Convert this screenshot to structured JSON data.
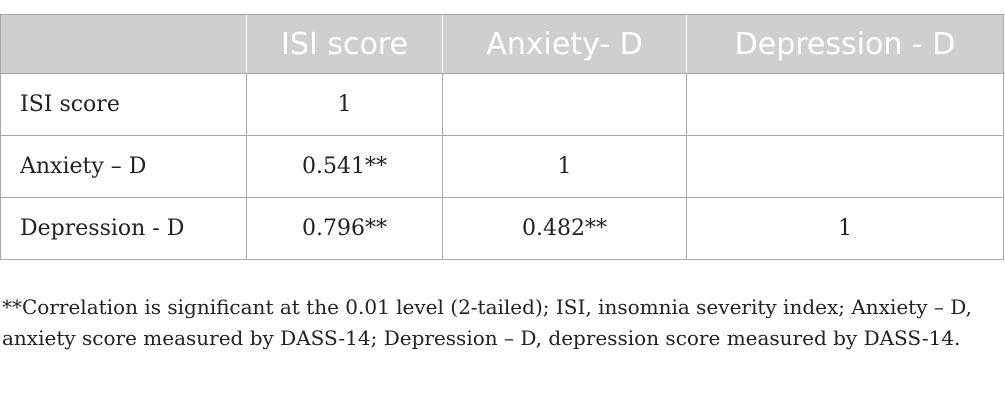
{
  "table": {
    "headers": [
      "",
      "ISI score",
      "Anxiety- D",
      "Depression - D"
    ],
    "rows": [
      {
        "label": "ISI score",
        "cells": [
          "1",
          "",
          ""
        ]
      },
      {
        "label": "Anxiety – D",
        "cells": [
          "0.541**",
          "1",
          ""
        ]
      },
      {
        "label": "Depression - D",
        "cells": [
          "0.796**",
          "0.482**",
          "1"
        ]
      }
    ]
  },
  "footnote": "**Correlation is significant at the 0.01 level (2-tailed); ISI, insomnia severity index; Anxiety – D, anxiety score measured by DASS-14; Depression – D, depression score measured by DASS-14."
}
